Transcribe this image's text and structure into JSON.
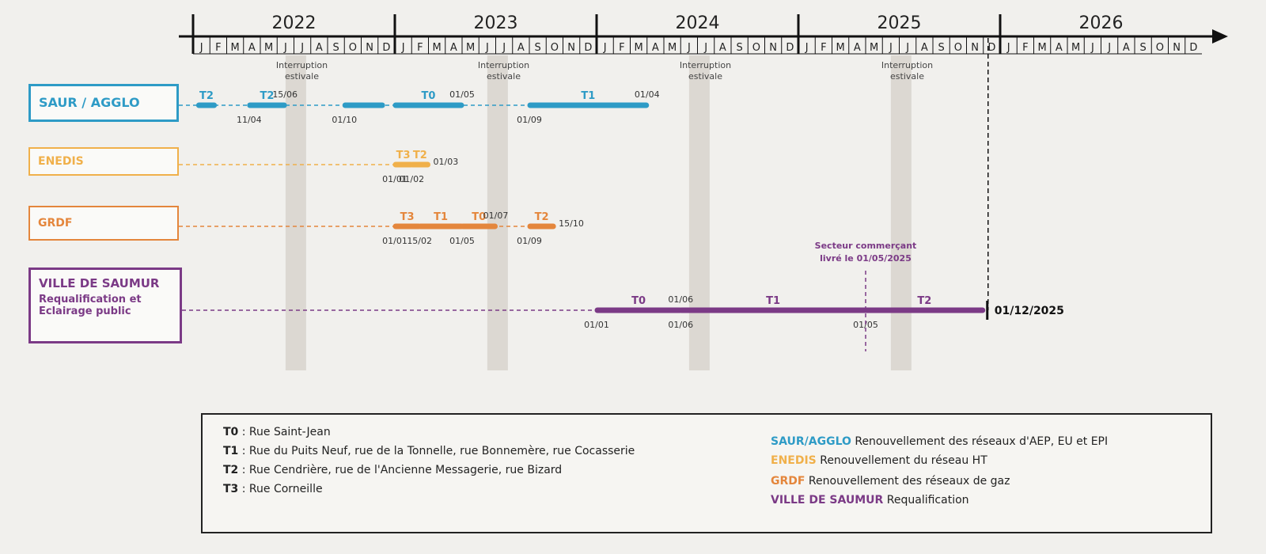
{
  "timeline": {
    "years": [
      "2022",
      "2023",
      "2024",
      "2025",
      "2026"
    ],
    "months": [
      "J",
      "F",
      "M",
      "A",
      "M",
      "J",
      "J",
      "A",
      "S",
      "O",
      "N",
      "D"
    ],
    "summer_break_label_line1": "Interruption",
    "summer_break_label_line2": "estivale"
  },
  "rows": [
    {
      "id": "saur",
      "label": "SAUR / AGGLO",
      "color": "#2e9bc6",
      "segments": [
        {
          "code": "T2",
          "start": "2022-01-10",
          "end": "2022-02-10"
        },
        {
          "code": "T2",
          "start": "2022-04-11",
          "end": "2022-06-15"
        },
        {
          "code": "",
          "start": "2022-10-01",
          "end": "2022-12-10"
        },
        {
          "code": "T0",
          "start": "2023-01-01",
          "end": "2023-05-01"
        },
        {
          "code": "T1",
          "start": "2023-09-01",
          "end": "2024-04-01"
        }
      ],
      "date_labels": [
        {
          "text": "15/06",
          "date": "2022-06-15",
          "pos": "above"
        },
        {
          "text": "11/04",
          "date": "2022-04-11",
          "pos": "below"
        },
        {
          "text": "01/10",
          "date": "2022-10-01",
          "pos": "below"
        },
        {
          "text": "01/05",
          "date": "2023-05-01",
          "pos": "above"
        },
        {
          "text": "01/09",
          "date": "2023-09-01",
          "pos": "below"
        },
        {
          "text": "01/04",
          "date": "2024-04-01",
          "pos": "above"
        }
      ]
    },
    {
      "id": "enedis",
      "label": "ENEDIS",
      "color": "#f0b04a",
      "segments": [
        {
          "code": "T3",
          "start": "2023-01-01",
          "end": "2023-02-01"
        },
        {
          "code": "T2",
          "start": "2023-02-01",
          "end": "2023-03-01"
        }
      ],
      "date_labels": [
        {
          "text": "01/01",
          "date": "2023-01-01",
          "pos": "below"
        },
        {
          "text": "01/02",
          "date": "2023-02-01",
          "pos": "below"
        },
        {
          "text": "01/03",
          "date": "2023-03-01",
          "pos": "right"
        }
      ]
    },
    {
      "id": "grdf",
      "label": "GRDF",
      "color": "#e4863c",
      "segments": [
        {
          "code": "T3",
          "start": "2023-01-01",
          "end": "2023-02-15"
        },
        {
          "code": "T1",
          "start": "2023-02-15",
          "end": "2023-05-01"
        },
        {
          "code": "T0",
          "start": "2023-05-01",
          "end": "2023-07-01"
        },
        {
          "code": "T2",
          "start": "2023-09-01",
          "end": "2023-10-15"
        }
      ],
      "date_labels": [
        {
          "text": "01/01",
          "date": "2023-01-01",
          "pos": "below"
        },
        {
          "text": "15/02",
          "date": "2023-02-15",
          "pos": "below"
        },
        {
          "text": "01/05",
          "date": "2023-05-01",
          "pos": "below"
        },
        {
          "text": "01/07",
          "date": "2023-07-01",
          "pos": "above"
        },
        {
          "text": "01/09",
          "date": "2023-09-01",
          "pos": "below"
        },
        {
          "text": "15/10",
          "date": "2023-10-15",
          "pos": "right"
        }
      ]
    },
    {
      "id": "ville",
      "label": "VILLE DE SAUMUR",
      "sublabel_line1": "Requalification et",
      "sublabel_line2": "Eclairage public",
      "color": "#7b3a86",
      "segments": [
        {
          "code": "T0",
          "start": "2024-01-01",
          "end": "2024-06-01"
        },
        {
          "code": "T1",
          "start": "2024-06-01",
          "end": "2025-05-01"
        },
        {
          "code": "T2",
          "start": "2025-05-01",
          "end": "2025-12-01"
        }
      ],
      "date_labels": [
        {
          "text": "01/06",
          "date": "2024-06-01",
          "pos": "above"
        },
        {
          "text": "01/01",
          "date": "2024-01-01",
          "pos": "below"
        },
        {
          "text": "01/06",
          "date": "2024-06-01",
          "pos": "below"
        },
        {
          "text": "01/05",
          "date": "2025-05-01",
          "pos": "below"
        }
      ],
      "end_label": "01/12/2025"
    }
  ],
  "milestone": {
    "line1": "Secteur commerçant",
    "line2": "livré le 01/05/2025",
    "date": "2025-05-01"
  },
  "legend": {
    "streets": [
      {
        "code": "T0",
        "text": " : Rue Saint-Jean"
      },
      {
        "code": "T1",
        "text": " : Rue du Puits Neuf, rue de la Tonnelle, rue Bonnemère, rue Cocasserie"
      },
      {
        "code": "T2",
        "text": " : Rue Cendrière, rue de l'Ancienne Messagerie, rue Bizard"
      },
      {
        "code": "T3",
        "text": " : Rue Corneille"
      }
    ],
    "orgs": [
      {
        "name": "SAUR/AGGLO",
        "color": "#2e9bc6",
        "text": " Renouvellement des réseaux d'AEP, EU et EPI"
      },
      {
        "name": "ENEDIS",
        "color": "#f0b04a",
        "text": " Renouvellement du réseau HT"
      },
      {
        "name": "GRDF",
        "color": "#e4863c",
        "text": " Renouvellement des réseaux de gaz"
      },
      {
        "name": "VILLE DE  SAUMUR",
        "color": "#7b3a86",
        "text": " Requalification"
      }
    ]
  }
}
